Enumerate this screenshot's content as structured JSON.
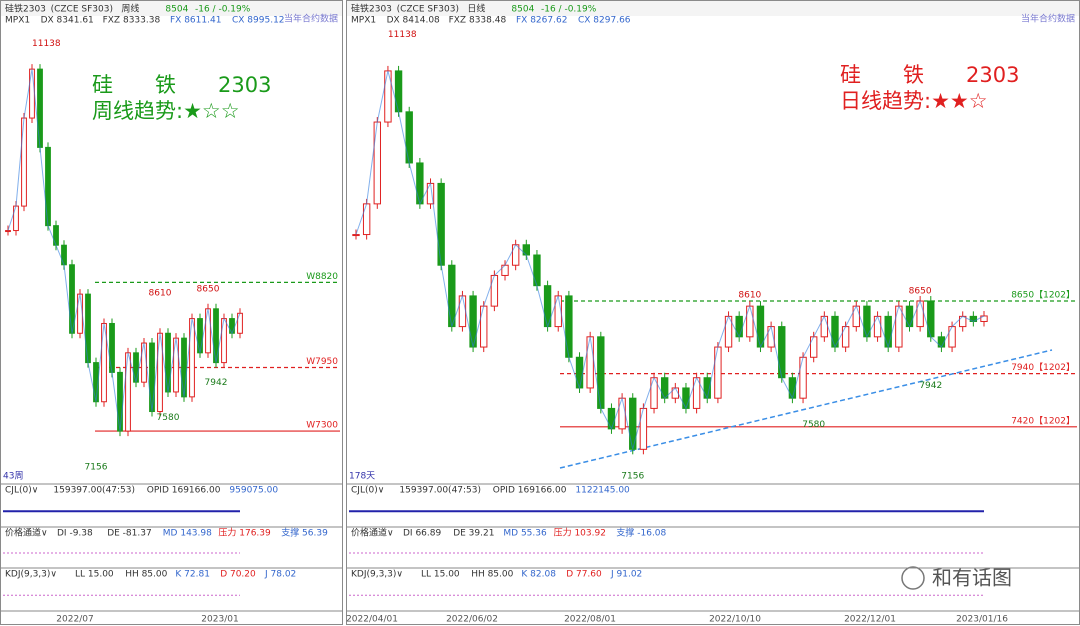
{
  "left_panel": {
    "header": {
      "symbol": "硅铁2303",
      "contract": "(CZCE SF303)",
      "period": "周线",
      "price": "8504",
      "change": "-16 / -0.19%",
      "note": "当年合约数据"
    },
    "indicator": {
      "name": "MPX1",
      "items": [
        "DX 8341.61",
        "FXZ 8333.38",
        "FX 8611.41",
        "CX 8995.12"
      ]
    },
    "title": [
      "硅　　铁　　2303",
      "周线趋势:★☆☆"
    ],
    "ylim": [
      6800,
      11400
    ],
    "closes": [
      9350,
      9600,
      10500,
      11000,
      10200,
      9400,
      9200,
      9000,
      8300,
      8700,
      8000,
      7600,
      8400,
      7900,
      7300,
      8100,
      7800,
      8200,
      7500,
      8300,
      7700,
      8250,
      7650,
      8450,
      8100,
      8550,
      8000,
      8450,
      8300,
      8504
    ],
    "levels": [
      {
        "value": 8820,
        "label": "W8820",
        "color": "#1a9a1a",
        "style": "dashed"
      },
      {
        "value": 7950,
        "label": "W7950",
        "color": "#e02020",
        "style": "dashed"
      },
      {
        "value": 7300,
        "label": "W7300",
        "color": "#e02020",
        "style": "solid"
      }
    ],
    "marks": [
      11138,
      8610,
      8650,
      7942,
      7580,
      7156
    ],
    "bar_count": "43周",
    "sub_panels": [
      [
        "CJL(0)∨",
        "159397.00(47:53)",
        "OPID 169166.00",
        "959075.00"
      ],
      [
        "价格通道∨",
        "DI -9.38",
        "DE -81.37",
        "MD 143.98",
        "压力 176.39",
        "支撑 56.39"
      ],
      [
        "KDJ(9,3,3)∨",
        "LL 15.00",
        "HH 85.00",
        "K 72.81",
        "D 70.20",
        "J 78.02"
      ]
    ],
    "dates": [
      "2022/07",
      "2023/01"
    ]
  },
  "right_panel": {
    "header": {
      "symbol": "硅铁2303",
      "contract": "(CZCE SF303)",
      "period": "日线",
      "price": "8504",
      "change": "-16 / -0.19%",
      "note": "当年合约数据"
    },
    "indicator": {
      "name": "MPX1",
      "items": [
        "DX 8414.08",
        "FXZ 8338.48",
        "FX 8267.62",
        "CX 8297.66"
      ]
    },
    "title": [
      "硅　　铁　　2303",
      "日线趋势:★★☆"
    ],
    "ylim": [
      6900,
      11300
    ],
    "closes": [
      9300,
      9600,
      10400,
      10900,
      10500,
      10000,
      9600,
      9800,
      9000,
      8400,
      8700,
      8200,
      8600,
      8900,
      9000,
      9200,
      9100,
      8800,
      8400,
      8700,
      8100,
      7800,
      8300,
      7600,
      7400,
      7700,
      7200,
      7600,
      7900,
      7700,
      7800,
      7600,
      7900,
      7700,
      8200,
      8500,
      8300,
      8600,
      8200,
      8400,
      7900,
      7700,
      8100,
      8300,
      8500,
      8200,
      8400,
      8600,
      8300,
      8500,
      8200,
      8600,
      8400,
      8650,
      8300,
      8200,
      8400,
      8500,
      8450,
      8504
    ],
    "levels": [
      {
        "value": 8650,
        "label": "8650【1202】",
        "color": "#1a9a1a",
        "style": "dashed"
      },
      {
        "value": 7940,
        "label": "7940【1202】",
        "color": "#e02020",
        "style": "dashed"
      },
      {
        "value": 7420,
        "label": "7420【1202】",
        "color": "#e02020",
        "style": "solid"
      }
    ],
    "marks": [
      11138,
      8610,
      8650,
      7942,
      7580,
      7156
    ],
    "bar_count": "178天",
    "sub_panels": [
      [
        "CJL(0)∨",
        "159397.00(47:53)",
        "OPID 169166.00",
        "1122145.00"
      ],
      [
        "价格通道∨",
        "DI 66.89",
        "DE 39.21",
        "MD 55.36",
        "压力 103.92",
        "支撑 -16.08"
      ],
      [
        "KDJ(9,3,3)∨",
        "LL 15.00",
        "HH 85.00",
        "K 82.08",
        "D 77.60",
        "J 91.02"
      ]
    ],
    "dates": [
      "2022/04/01",
      "2022/06/02",
      "2022/08/01",
      "2022/10/10",
      "2022/12/01",
      "2023/01/16"
    ]
  },
  "watermark": "和有话图"
}
